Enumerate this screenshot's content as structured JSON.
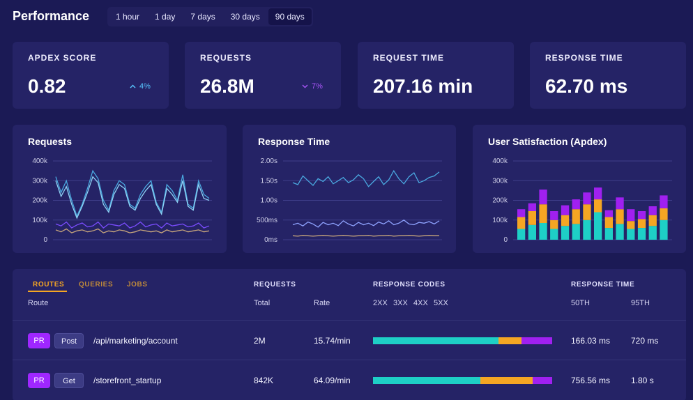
{
  "header": {
    "title": "Performance",
    "ranges": [
      "1 hour",
      "1 day",
      "7 days",
      "30 days",
      "90 days"
    ],
    "active_range": "90 days"
  },
  "stats": [
    {
      "label": "APDEX SCORE",
      "value": "0.82",
      "delta": "4%",
      "delta_dir": "up"
    },
    {
      "label": "REQUESTS",
      "value": "26.8M",
      "delta": "7%",
      "delta_dir": "down"
    },
    {
      "label": "REQUEST TIME",
      "value": "207.16 min",
      "delta": "",
      "delta_dir": ""
    },
    {
      "label": "RESPONSE TIME",
      "value": "62.70 ms",
      "delta": "",
      "delta_dir": ""
    }
  ],
  "colors": {
    "background": "#1b1a55",
    "card": "#252366",
    "teal": "#1ecfc6",
    "orange": "#f5a623",
    "purple": "#a020f0",
    "blue_line": "#4aa8e0",
    "violet_line": "#7b4dff",
    "tan_line": "#c9a77c"
  },
  "chart_data": [
    {
      "type": "line",
      "title": "Requests",
      "y_ticks": [
        "400k",
        "300k",
        "200k",
        "100k",
        "0"
      ],
      "ylim": [
        0,
        400000
      ],
      "series": [
        {
          "values": [
            320000,
            240000,
            300000,
            200000,
            120000,
            180000,
            260000,
            350000,
            310000,
            200000,
            150000,
            250000,
            300000,
            280000,
            180000,
            160000,
            230000,
            270000,
            300000,
            190000,
            140000,
            280000,
            250000,
            200000,
            330000,
            180000,
            160000,
            300000,
            230000,
            210000
          ]
        },
        {
          "values": [
            300000,
            220000,
            270000,
            180000,
            110000,
            170000,
            240000,
            320000,
            290000,
            180000,
            140000,
            230000,
            280000,
            260000,
            170000,
            150000,
            210000,
            250000,
            280000,
            180000,
            130000,
            260000,
            230000,
            190000,
            300000,
            170000,
            150000,
            280000,
            210000,
            200000
          ]
        },
        {
          "values": [
            80000,
            70000,
            90000,
            60000,
            75000,
            85000,
            65000,
            70000,
            90000,
            60000,
            80000,
            75000,
            70000,
            85000,
            60000,
            70000,
            90000,
            65000,
            75000,
            80000,
            60000,
            85000,
            70000,
            75000,
            80000,
            65000,
            70000,
            85000,
            60000,
            70000
          ]
        },
        {
          "values": [
            50000,
            40000,
            55000,
            35000,
            45000,
            50000,
            40000,
            45000,
            55000,
            35000,
            45000,
            40000,
            50000,
            45000,
            35000,
            40000,
            50000,
            45000,
            40000,
            45000,
            35000,
            50000,
            40000,
            45000,
            50000,
            40000,
            45000,
            50000,
            40000,
            45000
          ]
        }
      ]
    },
    {
      "type": "line",
      "title": "Response Time",
      "y_ticks": [
        "2.00s",
        "1.50s",
        "1.00s",
        "500ms",
        "0ms"
      ],
      "ylim": [
        0,
        2.0
      ],
      "series": [
        {
          "values": [
            1.45,
            1.4,
            1.62,
            1.5,
            1.38,
            1.55,
            1.48,
            1.6,
            1.42,
            1.5,
            1.58,
            1.45,
            1.52,
            1.65,
            1.55,
            1.35,
            1.48,
            1.6,
            1.4,
            1.52,
            1.75,
            1.55,
            1.42,
            1.6,
            1.7,
            1.45,
            1.5,
            1.58,
            1.62,
            1.72
          ]
        },
        {
          "values": [
            0.38,
            0.42,
            0.35,
            0.45,
            0.4,
            0.32,
            0.44,
            0.38,
            0.42,
            0.36,
            0.48,
            0.4,
            0.35,
            0.44,
            0.38,
            0.42,
            0.36,
            0.45,
            0.4,
            0.48,
            0.38,
            0.42,
            0.5,
            0.4,
            0.38,
            0.44,
            0.42,
            0.46,
            0.4,
            0.48
          ]
        },
        {
          "values": [
            0.1,
            0.09,
            0.11,
            0.1,
            0.09,
            0.1,
            0.11,
            0.1,
            0.09,
            0.1,
            0.11,
            0.1,
            0.09,
            0.1,
            0.1,
            0.11,
            0.09,
            0.1,
            0.1,
            0.11,
            0.09,
            0.1,
            0.1,
            0.11,
            0.1,
            0.09,
            0.1,
            0.11,
            0.1,
            0.1
          ]
        }
      ]
    },
    {
      "type": "bar",
      "stacked": true,
      "title": "User Satisfaction (Apdex)",
      "y_ticks": [
        "400k",
        "300k",
        "200k",
        "100k",
        "0"
      ],
      "ylim": [
        0,
        400000
      ],
      "series": [
        {
          "values": [
            55000,
            75000,
            85000,
            55000,
            70000,
            80000,
            100000,
            140000,
            60000,
            80000,
            55000,
            60000,
            70000,
            100000
          ]
        },
        {
          "values": [
            60000,
            70000,
            95000,
            45000,
            55000,
            75000,
            80000,
            65000,
            55000,
            75000,
            40000,
            45000,
            55000,
            60000
          ]
        },
        {
          "values": [
            40000,
            40000,
            75000,
            45000,
            50000,
            50000,
            60000,
            60000,
            35000,
            60000,
            60000,
            40000,
            45000,
            65000
          ]
        }
      ]
    }
  ],
  "table": {
    "tabs": [
      "ROUTES",
      "QUERIES",
      "JOBS"
    ],
    "active_tab": "ROUTES",
    "group_headers": {
      "requests": "REQUESTS",
      "codes": "RESPONSE CODES",
      "time": "RESPONSE TIME"
    },
    "columns": {
      "route": "Route",
      "total": "Total",
      "rate": "Rate",
      "c2": "2XX",
      "c3": "3XX",
      "c4": "4XX",
      "c5": "5XX",
      "p50": "50TH",
      "p95": "95TH"
    },
    "rows": [
      {
        "tag": "PR",
        "method": "Post",
        "route": "/api/marketing/account",
        "total": "2M",
        "rate": "15.74/min",
        "codes": [
          0.7,
          0.13,
          0.17
        ],
        "p50": "166.03 ms",
        "p95": "720 ms"
      },
      {
        "tag": "PR",
        "method": "Get",
        "route": "/storefront_startup",
        "total": "842K",
        "rate": "64.09/min",
        "codes": [
          0.6,
          0.29,
          0.11
        ],
        "p50": "756.56 ms",
        "p95": "1.80 s"
      }
    ]
  }
}
